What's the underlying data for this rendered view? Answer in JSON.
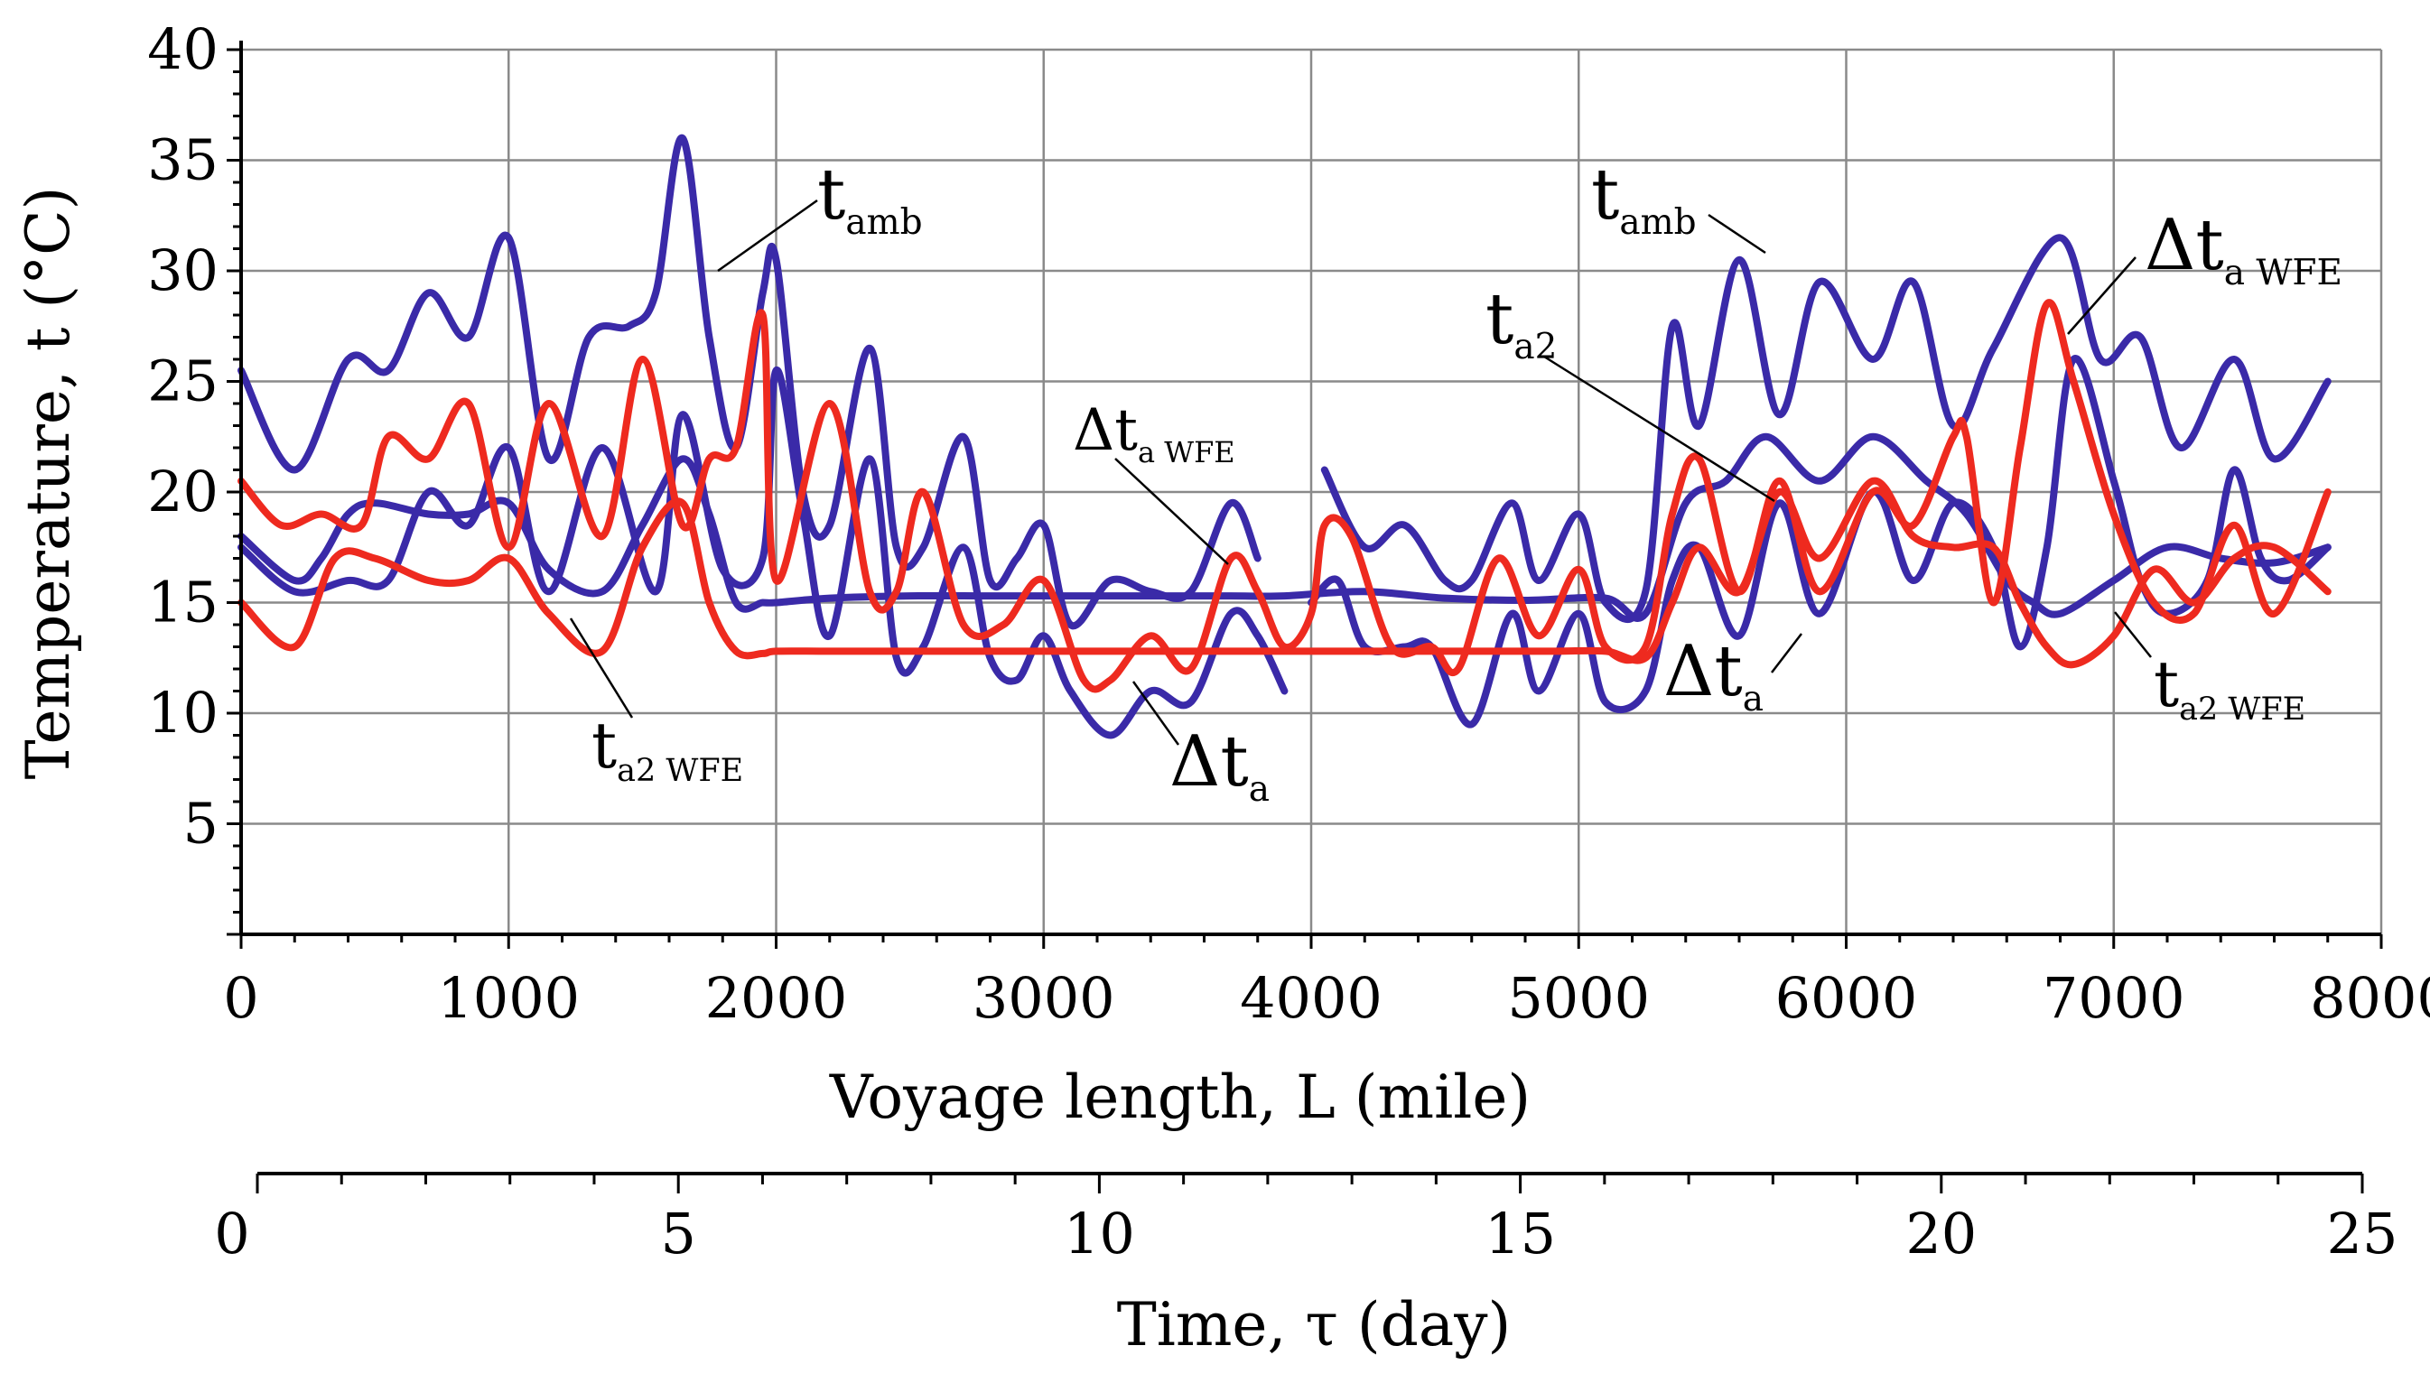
{
  "chart_data": {
    "type": "line",
    "xlabel": "Voyage length, L (mile)",
    "ylabel": "Temperature, t (°C)",
    "xlim": [
      0,
      8000
    ],
    "ylim": [
      0,
      40
    ],
    "x_ticks": [
      "0",
      "1000",
      "2000",
      "3000",
      "4000",
      "5000",
      "6000",
      "7000",
      "8000"
    ],
    "y_ticks": [
      "5",
      "10",
      "15",
      "20",
      "25",
      "30",
      "35",
      "40"
    ],
    "secondary_axis": {
      "label": "Time, τ (day)",
      "range": [
        0,
        25
      ],
      "ticks": [
        "0",
        "5",
        "10",
        "15",
        "20",
        "25"
      ]
    },
    "colors": {
      "blue": "#3a2aa8",
      "red": "#ee2a1f",
      "grid": "#8a8a8a"
    },
    "series": [
      {
        "name": "t_amb",
        "color": "#3a2aa8",
        "x": [
          0,
          200,
          400,
          550,
          700,
          850,
          1000,
          1150,
          1300,
          1450,
          1550,
          1650,
          1750,
          1850,
          1950,
          2000,
          2100,
          2200,
          2350,
          2450,
          2550,
          2700,
          2800,
          2900,
          3000,
          3100,
          3250,
          3400,
          3550,
          3700,
          3800,
          3900,
          4050,
          4200,
          4350,
          4500,
          4600,
          4750,
          4850,
          5000,
          5100,
          5250,
          5350,
          5450,
          5600,
          5750,
          5900,
          6100,
          6250,
          6400,
          6550,
          6800,
          6950,
          7100,
          7250,
          7450,
          7600,
          7800
        ],
        "y": [
          25.5,
          21,
          26,
          25.5,
          29,
          27,
          31.5,
          21.5,
          27,
          27.5,
          29,
          36,
          27,
          22,
          29,
          30.5,
          20,
          18.5,
          26.5,
          17.5,
          17.5,
          22.5,
          16,
          17,
          18.5,
          14,
          16,
          15.5,
          15.5,
          19.5,
          17,
          null,
          21,
          17.5,
          18.5,
          16,
          16,
          19.5,
          16,
          19,
          15,
          15.5,
          27.5,
          23,
          30.5,
          23.5,
          29.5,
          26,
          29.5,
          23,
          26.5,
          31.5,
          26,
          27,
          22,
          26,
          21.5,
          25
        ]
      },
      {
        "name": "t_a2",
        "color": "#3a2aa8",
        "x": [
          0,
          200,
          300,
          400,
          500,
          700,
          850,
          1000,
          1150,
          1350,
          1500,
          1650,
          1750,
          1850,
          1950,
          2000,
          2200,
          2500,
          2800,
          3100,
          3400,
          3700,
          3900,
          4200,
          4500,
          4800,
          5100,
          5250,
          5400,
          5550,
          5700,
          5900,
          6100,
          6300,
          6450,
          6600,
          6700,
          6800,
          7000,
          7200,
          7400,
          7600,
          7800
        ],
        "y": [
          18,
          16,
          17,
          19,
          19.5,
          19,
          19,
          19.5,
          16.5,
          15.5,
          18.5,
          21.5,
          19,
          15,
          15,
          15,
          15.2,
          15.3,
          15.3,
          15.3,
          15.3,
          15.3,
          15.3,
          15.5,
          15.2,
          15.1,
          15.2,
          14.5,
          19.5,
          20.5,
          22.5,
          20.5,
          22.5,
          20.5,
          19,
          16,
          15,
          14.5,
          16,
          17.5,
          17,
          16.8,
          17.5
        ]
      },
      {
        "name": "Δt_a",
        "color": "#3a2aa8",
        "x": [
          0,
          200,
          400,
          550,
          700,
          850,
          1000,
          1150,
          1350,
          1550,
          1650,
          1800,
          1950,
          2000,
          2100,
          2200,
          2350,
          2450,
          2550,
          2700,
          2800,
          2900,
          3000,
          3100,
          3250,
          3400,
          3550,
          3700,
          3800,
          3900,
          null,
          4000,
          4100,
          4200,
          4350,
          4450,
          4600,
          4750,
          4850,
          5000,
          5100,
          5250,
          5350,
          5450,
          5600,
          5750,
          5900,
          6100,
          6250,
          6400,
          6550,
          6650,
          6750,
          6850,
          7000,
          7100,
          7200,
          7350,
          7450,
          7550,
          7650,
          7800
        ],
        "y": [
          17.5,
          15.5,
          16,
          16,
          20,
          18.5,
          22,
          15.5,
          22,
          15.5,
          23.5,
          16.5,
          17,
          25.5,
          19,
          13.5,
          21.5,
          12.5,
          13,
          17.5,
          12.5,
          11.5,
          13.5,
          11,
          9,
          11,
          10.5,
          14.5,
          13.5,
          11,
          null,
          15,
          16,
          13,
          13,
          13,
          9.5,
          14.5,
          11,
          14.5,
          10.5,
          11,
          16,
          17.5,
          13.5,
          19.5,
          14.5,
          20,
          16,
          19.5,
          17.5,
          13,
          17.5,
          26,
          20.5,
          16,
          14.5,
          16,
          21,
          17,
          16,
          17.5
        ]
      },
      {
        "name": "t_a2 WFE",
        "color": "#ee2a1f",
        "x": [
          0,
          200,
          350,
          500,
          700,
          850,
          1000,
          1150,
          1350,
          1500,
          1650,
          1750,
          1850,
          1950,
          2000,
          2200,
          2500,
          2800,
          3100,
          3400,
          3700,
          3900,
          4100,
          4300,
          4500,
          4700,
          4900,
          5100,
          5250,
          5350,
          5450,
          5600,
          5750,
          5900,
          6100,
          6250,
          6400,
          6550,
          6650,
          6750,
          6850,
          7000,
          7150,
          7300,
          7450,
          7600,
          7800
        ],
        "y": [
          15,
          13,
          17,
          17,
          16,
          16,
          17,
          14.5,
          12.8,
          17.5,
          19.5,
          15,
          12.8,
          12.7,
          12.8,
          12.8,
          12.8,
          12.8,
          12.8,
          12.8,
          12.8,
          12.8,
          12.8,
          12.8,
          12.8,
          12.8,
          12.8,
          12.8,
          12.5,
          15,
          17.5,
          15.5,
          20,
          17,
          20.5,
          18,
          17.5,
          17.5,
          15,
          13,
          12.2,
          13.5,
          16.5,
          15,
          17,
          17.5,
          15.5
        ]
      },
      {
        "name": "Δt_a WFE",
        "color": "#ee2a1f",
        "x": [
          0,
          150,
          300,
          450,
          550,
          700,
          850,
          1000,
          1150,
          1350,
          1500,
          1650,
          1750,
          1850,
          1950,
          2000,
          2200,
          2350,
          2450,
          2550,
          2700,
          2850,
          3000,
          3150,
          3250,
          3400,
          3550,
          3700,
          3800,
          3900,
          4000,
          4050,
          4150,
          4300,
          4450,
          4550,
          4700,
          4850,
          5000,
          5100,
          5250,
          5350,
          5450,
          5600,
          5750,
          5900,
          6100,
          6250,
          6400,
          6450,
          6550,
          6650,
          6750,
          6850,
          7000,
          7150,
          7300,
          7450,
          7600,
          7800
        ],
        "y": [
          20.5,
          18.5,
          19,
          18.5,
          22.5,
          21.5,
          24,
          17.5,
          24,
          18,
          26,
          18.5,
          21.5,
          22,
          28,
          16,
          24,
          15.5,
          15.5,
          20,
          14,
          14,
          16,
          11.5,
          11.5,
          13.5,
          12,
          17,
          15.5,
          13,
          14.5,
          18.5,
          18,
          13,
          13,
          12,
          17,
          13.5,
          16.5,
          13,
          13,
          19,
          21.5,
          15.5,
          20.5,
          15.5,
          20,
          18.5,
          22.5,
          22.5,
          15,
          22,
          28.5,
          25,
          19,
          15,
          14.5,
          18.5,
          14.5,
          20
        ]
      }
    ],
    "annotations": [
      {
        "base": "t",
        "sub": "amb"
      },
      {
        "base": "t",
        "sub": "amb"
      },
      {
        "base": "Δt",
        "sub": "a WFE"
      },
      {
        "base": "t",
        "sub": "a2"
      },
      {
        "base": "Δt",
        "sub": "a WFE"
      },
      {
        "base": "Δt",
        "sub": "a"
      },
      {
        "base": "Δt",
        "sub": "a"
      },
      {
        "base": "t",
        "sub": "a2 WFE"
      },
      {
        "base": "t",
        "sub": "a2 WFE"
      }
    ]
  }
}
